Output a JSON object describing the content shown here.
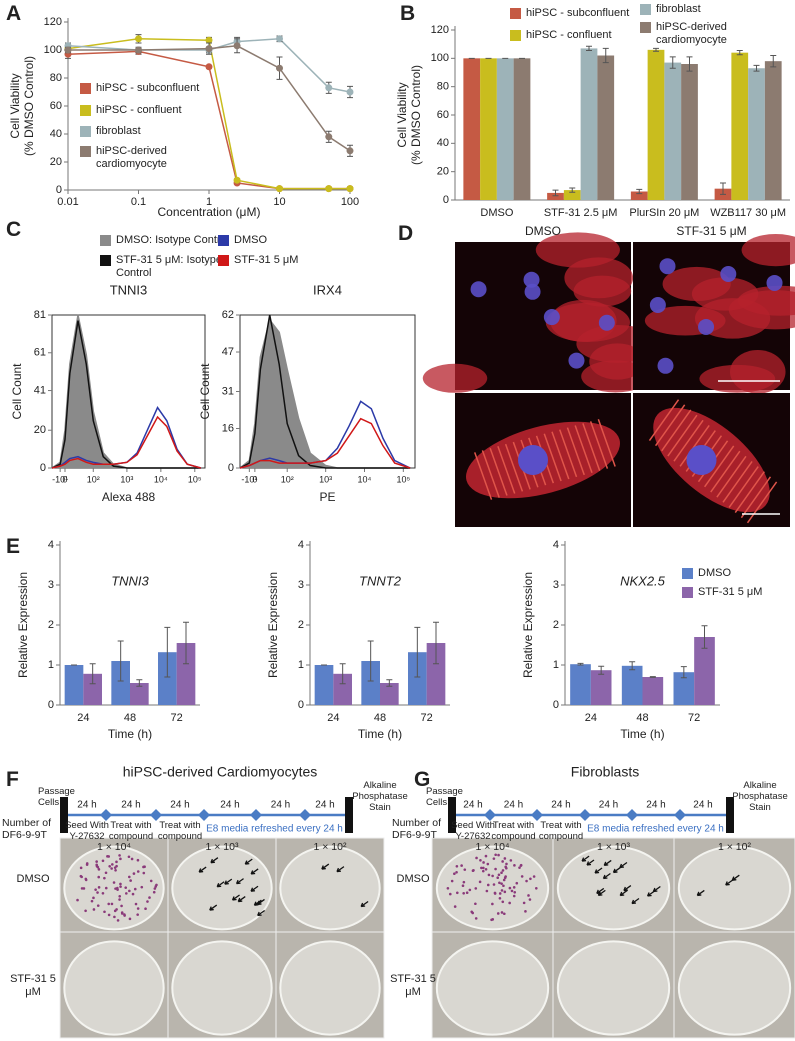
{
  "panel_labels": [
    "A",
    "B",
    "C",
    "D",
    "E",
    "F",
    "G"
  ],
  "chart_data": [
    {
      "type": "line",
      "x": [
        0.01,
        0.1,
        1,
        2.5,
        10,
        50,
        100
      ],
      "xscale": "log",
      "xlim": [
        0.01,
        100
      ],
      "xticks": [
        0.01,
        0.1,
        1,
        10,
        100
      ],
      "ylim": [
        0,
        120
      ],
      "yticks": [
        0,
        20,
        40,
        60,
        80,
        100,
        120
      ],
      "xlabel": "Concentration (μM)",
      "ylabel": [
        "Cell Viability",
        "(% DMSO Control)"
      ],
      "markers": true,
      "legend": "center left",
      "series": [
        {
          "name": "hiPSC - subconfluent",
          "color": "#c55a44",
          "values": [
            97,
            99,
            88,
            5,
            1,
            1,
            1
          ],
          "errors": [
            3,
            2,
            1,
            1,
            0.5,
            0.5,
            0.5
          ]
        },
        {
          "name": "hiPSC - confluent",
          "color": "#c9bd1e",
          "values": [
            101,
            108,
            107,
            7,
            1,
            1,
            1
          ],
          "errors": [
            2,
            3,
            2,
            1,
            0.5,
            0.5,
            0.5
          ]
        },
        {
          "name": "fibroblast",
          "color": "#9db3b8",
          "values": [
            103,
            100,
            100,
            106,
            108,
            73,
            70
          ],
          "errors": [
            2,
            1,
            2,
            3,
            2,
            4,
            4
          ]
        },
        {
          "name": "hiPSC-derived cardiomyocyte",
          "color": "#8c7b70",
          "values": [
            100,
            100,
            101,
            103,
            87,
            38,
            28
          ],
          "errors": [
            2,
            2,
            4,
            5,
            8,
            4,
            4
          ]
        }
      ]
    },
    {
      "type": "bar",
      "categories": [
        "DMSO",
        "STF-31 2.5 μM",
        "PlurSIn 20 μM",
        "WZB117 30 μM"
      ],
      "ylim": [
        0,
        120
      ],
      "yticks": [
        0,
        20,
        40,
        60,
        80,
        100,
        120
      ],
      "ylabel": [
        "Cell Viability",
        "(% DMSO Control)"
      ],
      "legend": "top",
      "series": [
        {
          "name": "hiPSC - subconfluent",
          "color": "#c55a44",
          "values": [
            100,
            5,
            6,
            8
          ],
          "errors": [
            0,
            2,
            1.5,
            4
          ]
        },
        {
          "name": "hiPSC - confluent",
          "color": "#c9bd1e",
          "values": [
            100,
            7,
            106,
            104
          ],
          "errors": [
            0,
            1.5,
            1,
            1.5
          ]
        },
        {
          "name": "fibroblast",
          "color": "#9db3b8",
          "values": [
            100,
            107,
            97,
            93
          ],
          "errors": [
            0,
            1.5,
            4,
            2
          ]
        },
        {
          "name": "hiPSC-derived cardiomyocyte",
          "color": "#8c7b70",
          "values": [
            100,
            102,
            96,
            98
          ],
          "errors": [
            0,
            5,
            5,
            4
          ]
        }
      ]
    },
    {
      "type": "line",
      "title": "TNNI3",
      "xscale": "asinh",
      "xlim": [
        -30,
        200000
      ],
      "xticks": [
        {
          "value": -10,
          "label": "-10¹"
        },
        0,
        {
          "value": 100,
          "label": "10²"
        },
        {
          "value": 1000,
          "label": "10³"
        },
        {
          "value": 10000,
          "label": "10⁴"
        },
        {
          "value": 100000,
          "label": "10⁵"
        }
      ],
      "x": [
        -30,
        -10,
        0,
        10,
        30,
        60,
        100,
        200,
        400,
        1000,
        2000,
        4000,
        8000,
        15000,
        30000,
        60000,
        150000
      ],
      "ylim": [
        0,
        81
      ],
      "yticks": [
        0,
        20,
        41,
        61,
        81
      ],
      "xlabel": "Alexa 488",
      "ylabel": "Cell Count",
      "frame": "box",
      "legend": "top",
      "series": [
        {
          "name": "DMSO: Isotype Control",
          "color": "#8a8a8a",
          "filled": true,
          "values": [
            0,
            3,
            20,
            55,
            81,
            60,
            30,
            8,
            2,
            0,
            0,
            0,
            0,
            0,
            0,
            0,
            0
          ]
        },
        {
          "name": "STF-31 5 μM: Isotype Control",
          "color": "#111111",
          "values": [
            0,
            2,
            15,
            50,
            78,
            55,
            25,
            6,
            1,
            0,
            0,
            0,
            0,
            0,
            0,
            0,
            0
          ]
        },
        {
          "name": "DMSO",
          "color": "#2c3aa8",
          "values": [
            0,
            1,
            3,
            5,
            6,
            4,
            3,
            2,
            2,
            3,
            8,
            20,
            32,
            25,
            10,
            2,
            0
          ]
        },
        {
          "name": "STF-31 5 μM",
          "color": "#d01818",
          "values": [
            0,
            1,
            2,
            4,
            5,
            3,
            2,
            2,
            2,
            3,
            7,
            17,
            27,
            22,
            9,
            2,
            0
          ]
        }
      ]
    },
    {
      "type": "line",
      "title": "IRX4",
      "xscale": "asinh",
      "xlim": [
        -30,
        200000
      ],
      "xticks": [
        {
          "value": -10,
          "label": "-10¹"
        },
        0,
        {
          "value": 100,
          "label": "10²"
        },
        {
          "value": 1000,
          "label": "10³"
        },
        {
          "value": 10000,
          "label": "10⁴"
        },
        {
          "value": 100000,
          "label": "10⁵"
        }
      ],
      "x": [
        -30,
        -10,
        0,
        10,
        30,
        60,
        100,
        200,
        400,
        1000,
        2000,
        4000,
        8000,
        15000,
        30000,
        60000,
        150000
      ],
      "ylim": [
        0,
        62
      ],
      "yticks": [
        0,
        16,
        31,
        47,
        62
      ],
      "xlabel": "PE",
      "ylabel": "Cell Count",
      "frame": "box",
      "series": [
        {
          "color": "#8a8a8a",
          "filled": true,
          "values": [
            0,
            3,
            18,
            45,
            60,
            55,
            40,
            20,
            6,
            1,
            0,
            0,
            0,
            0,
            0,
            0,
            0
          ]
        },
        {
          "color": "#111111",
          "values": [
            0,
            2,
            14,
            40,
            62,
            42,
            18,
            5,
            1,
            0,
            0,
            0,
            0,
            0,
            0,
            0,
            0
          ]
        },
        {
          "color": "#2c3aa8",
          "values": [
            0,
            1,
            2,
            3,
            4,
            3,
            2,
            2,
            2,
            3,
            8,
            17,
            27,
            24,
            12,
            3,
            0
          ]
        },
        {
          "color": "#d01818",
          "values": [
            0,
            1,
            2,
            3,
            3,
            2,
            2,
            2,
            2,
            3,
            6,
            13,
            20,
            18,
            9,
            2,
            0
          ]
        }
      ]
    },
    {
      "type": "bar",
      "title": "TNNI3",
      "categories": [
        24,
        48,
        72
      ],
      "ylim": [
        0,
        4
      ],
      "yticks": [
        0,
        1,
        2,
        3,
        4
      ],
      "xlabel": "Time (h)",
      "ylabel": "Relative Expression",
      "series": [
        {
          "color": "#5b80c8",
          "values": [
            1,
            1.1,
            1.32
          ],
          "errors": [
            0,
            0.5,
            0.62
          ]
        },
        {
          "color": "#8c65aa",
          "values": [
            0.78,
            0.55,
            1.55
          ],
          "errors": [
            0.25,
            0.08,
            0.52
          ]
        }
      ]
    },
    {
      "type": "bar",
      "title": "TNNT2",
      "categories": [
        24,
        48,
        72
      ],
      "ylim": [
        0,
        4
      ],
      "yticks": [
        0,
        1,
        2,
        3,
        4
      ],
      "xlabel": "Time (h)",
      "ylabel": "Relative Expression",
      "series": [
        {
          "color": "#5b80c8",
          "values": [
            1,
            1.1,
            1.32
          ],
          "errors": [
            0,
            0.5,
            0.62
          ]
        },
        {
          "color": "#8c65aa",
          "values": [
            0.78,
            0.55,
            1.55
          ],
          "errors": [
            0.25,
            0.08,
            0.52
          ]
        }
      ]
    },
    {
      "type": "bar",
      "title": "NKX2.5",
      "categories": [
        24,
        48,
        72
      ],
      "ylim": [
        0,
        4
      ],
      "yticks": [
        0,
        1,
        2,
        3,
        4
      ],
      "xlabel": "Time (h)",
      "ylabel": "Relative Expression",
      "legend": "upper right",
      "series": [
        {
          "name": "DMSO",
          "color": "#5b80c8",
          "values": [
            1.02,
            0.98,
            0.82
          ],
          "errors": [
            0.02,
            0.1,
            0.14
          ]
        },
        {
          "name": "STF-31 5 μM",
          "color": "#8c65aa",
          "values": [
            0.87,
            0.7,
            1.7
          ],
          "errors": [
            0.1,
            0.01,
            0.28
          ]
        }
      ]
    }
  ],
  "microscopy": {
    "conditions": [
      "DMSO",
      "STF-31 5 μM"
    ]
  },
  "assays": [
    {
      "title": "hiPSC-derived Cardiomyocytes",
      "start": "Passage Cells",
      "end": "Alkaline Phosphatase Stain",
      "steps": [
        {
          "duration": "24 h",
          "label": "Seed With Y-27632"
        },
        {
          "duration": "24 h",
          "label": "Treat with compound"
        },
        {
          "duration": "24 h",
          "label": "Treat with compound"
        },
        {
          "duration": "24 h"
        },
        {
          "duration": "24 h"
        },
        {
          "duration": "24 h"
        }
      ],
      "media_note": "E8 media refreshed every 24 h",
      "cell_number_header": "Number of DF6-9-9T",
      "cell_numbers": [
        "1 × 10⁴",
        "1 × 10³",
        "1 × 10²"
      ],
      "treatments": [
        "DMSO",
        "STF-31 5 μM"
      ]
    },
    {
      "title": "Fibroblasts",
      "start": "Passage Cells",
      "end": "Alkaline Phosphatase Stain",
      "steps": [
        {
          "duration": "24 h",
          "label": "Seed With Y-27632"
        },
        {
          "duration": "24 h",
          "label": "Treat with compound"
        },
        {
          "duration": "24 h",
          "label": "Treat with compound"
        },
        {
          "duration": "24 h"
        },
        {
          "duration": "24 h"
        },
        {
          "duration": "24 h"
        }
      ],
      "media_note": "E8 media refreshed every 24 h",
      "cell_number_header": "Number of DF6-9-9T",
      "cell_numbers": [
        "1 × 10⁴",
        "1 × 10³",
        "1 × 10²"
      ],
      "treatments": [
        "DMSO",
        "STF-31 5 μM"
      ]
    }
  ]
}
